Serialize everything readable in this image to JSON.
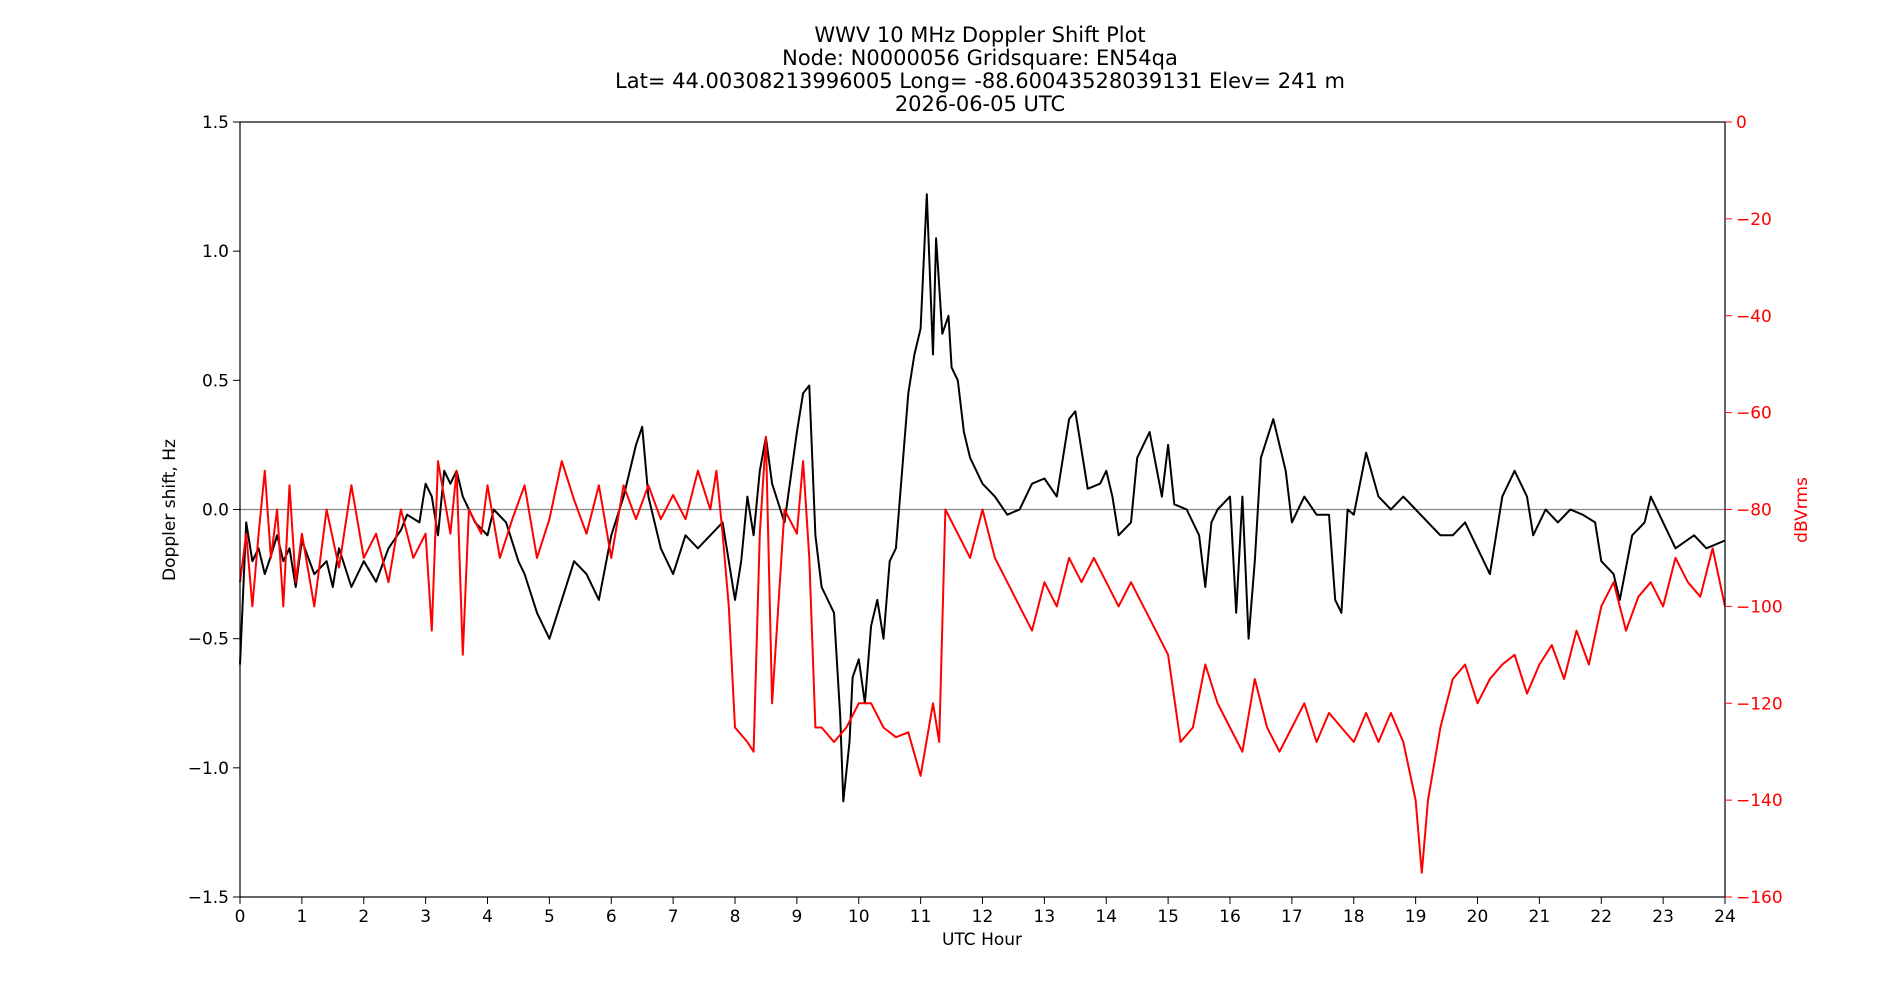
{
  "chart_data": {
    "type": "line",
    "title_lines": [
      "WWV 10 MHz Doppler Shift Plot",
      "Node:  N0000056     Gridsquare:  EN54qa",
      "Lat= 44.00308213996005    Long= -88.60043528039131    Elev= 241 m",
      "2026-06-05  UTC"
    ],
    "xlabel": "UTC Hour",
    "ylabel_left": "Doppler shift, Hz",
    "ylabel_right": "dBVrms",
    "xlim": [
      0,
      24
    ],
    "ylim_left": [
      -1.5,
      1.5
    ],
    "ylim_right": [
      -160,
      0
    ],
    "x_ticks": [
      0,
      1,
      2,
      3,
      4,
      5,
      6,
      7,
      8,
      9,
      10,
      11,
      12,
      13,
      14,
      15,
      16,
      17,
      18,
      19,
      20,
      21,
      22,
      23,
      24
    ],
    "y_left_ticks": [
      -1.5,
      -1.0,
      -0.5,
      0.0,
      0.5,
      1.0,
      1.5
    ],
    "y_left_tick_labels": [
      "−1.5",
      "−1.0",
      "−0.5",
      "0.0",
      "0.5",
      "1.0",
      "1.5"
    ],
    "y_right_ticks": [
      -160,
      -140,
      -120,
      -100,
      -80,
      -60,
      -40,
      -20,
      0
    ],
    "y_right_tick_labels": [
      "−160",
      "−140",
      "−120",
      "−100",
      "−80",
      "−60",
      "−40",
      "−20",
      "0"
    ],
    "zero_line": 0.0,
    "colors": {
      "doppler": "#000000",
      "power": "#ff0000",
      "zero_line": "#888888",
      "right_axis": "#ff0000"
    },
    "series": [
      {
        "axis": "left",
        "color": "#000000",
        "points": [
          [
            0,
            -0.6
          ],
          [
            0.1,
            -0.05
          ],
          [
            0.2,
            -0.2
          ],
          [
            0.3,
            -0.15
          ],
          [
            0.4,
            -0.25
          ],
          [
            0.5,
            -0.18
          ],
          [
            0.6,
            -0.1
          ],
          [
            0.7,
            -0.2
          ],
          [
            0.8,
            -0.15
          ],
          [
            0.9,
            -0.3
          ],
          [
            1.0,
            -0.12
          ],
          [
            1.2,
            -0.25
          ],
          [
            1.4,
            -0.2
          ],
          [
            1.5,
            -0.3
          ],
          [
            1.6,
            -0.15
          ],
          [
            1.8,
            -0.3
          ],
          [
            2.0,
            -0.2
          ],
          [
            2.2,
            -0.28
          ],
          [
            2.4,
            -0.15
          ],
          [
            2.6,
            -0.08
          ],
          [
            2.7,
            -0.02
          ],
          [
            2.9,
            -0.05
          ],
          [
            3.0,
            0.1
          ],
          [
            3.1,
            0.05
          ],
          [
            3.2,
            -0.1
          ],
          [
            3.3,
            0.15
          ],
          [
            3.4,
            0.1
          ],
          [
            3.5,
            0.15
          ],
          [
            3.6,
            0.05
          ],
          [
            3.8,
            -0.05
          ],
          [
            4.0,
            -0.1
          ],
          [
            4.1,
            0.0
          ],
          [
            4.3,
            -0.05
          ],
          [
            4.5,
            -0.2
          ],
          [
            4.6,
            -0.25
          ],
          [
            4.8,
            -0.4
          ],
          [
            5.0,
            -0.5
          ],
          [
            5.2,
            -0.35
          ],
          [
            5.4,
            -0.2
          ],
          [
            5.6,
            -0.25
          ],
          [
            5.8,
            -0.35
          ],
          [
            6.0,
            -0.1
          ],
          [
            6.2,
            0.05
          ],
          [
            6.4,
            0.25
          ],
          [
            6.5,
            0.32
          ],
          [
            6.6,
            0.05
          ],
          [
            6.8,
            -0.15
          ],
          [
            7.0,
            -0.25
          ],
          [
            7.2,
            -0.1
          ],
          [
            7.4,
            -0.15
          ],
          [
            7.6,
            -0.1
          ],
          [
            7.8,
            -0.05
          ],
          [
            7.9,
            -0.2
          ],
          [
            8.0,
            -0.35
          ],
          [
            8.1,
            -0.2
          ],
          [
            8.2,
            0.05
          ],
          [
            8.3,
            -0.1
          ],
          [
            8.4,
            0.15
          ],
          [
            8.5,
            0.28
          ],
          [
            8.6,
            0.1
          ],
          [
            8.8,
            -0.05
          ],
          [
            9.0,
            0.3
          ],
          [
            9.1,
            0.45
          ],
          [
            9.2,
            0.48
          ],
          [
            9.3,
            -0.1
          ],
          [
            9.4,
            -0.3
          ],
          [
            9.6,
            -0.4
          ],
          [
            9.7,
            -0.8
          ],
          [
            9.75,
            -1.13
          ],
          [
            9.85,
            -0.9
          ],
          [
            9.9,
            -0.65
          ],
          [
            10.0,
            -0.58
          ],
          [
            10.1,
            -0.75
          ],
          [
            10.2,
            -0.45
          ],
          [
            10.3,
            -0.35
          ],
          [
            10.4,
            -0.5
          ],
          [
            10.5,
            -0.2
          ],
          [
            10.6,
            -0.15
          ],
          [
            10.7,
            0.15
          ],
          [
            10.8,
            0.45
          ],
          [
            10.9,
            0.6
          ],
          [
            11.0,
            0.7
          ],
          [
            11.1,
            1.22
          ],
          [
            11.2,
            0.6
          ],
          [
            11.25,
            1.05
          ],
          [
            11.35,
            0.68
          ],
          [
            11.45,
            0.75
          ],
          [
            11.5,
            0.55
          ],
          [
            11.6,
            0.5
          ],
          [
            11.7,
            0.3
          ],
          [
            11.8,
            0.2
          ],
          [
            12.0,
            0.1
          ],
          [
            12.2,
            0.05
          ],
          [
            12.4,
            -0.02
          ],
          [
            12.6,
            0.0
          ],
          [
            12.8,
            0.1
          ],
          [
            13.0,
            0.12
          ],
          [
            13.2,
            0.05
          ],
          [
            13.4,
            0.35
          ],
          [
            13.5,
            0.38
          ],
          [
            13.7,
            0.08
          ],
          [
            13.9,
            0.1
          ],
          [
            14.0,
            0.15
          ],
          [
            14.1,
            0.05
          ],
          [
            14.2,
            -0.1
          ],
          [
            14.4,
            -0.05
          ],
          [
            14.5,
            0.2
          ],
          [
            14.7,
            0.3
          ],
          [
            14.9,
            0.05
          ],
          [
            15.0,
            0.25
          ],
          [
            15.1,
            0.02
          ],
          [
            15.3,
            0.0
          ],
          [
            15.5,
            -0.1
          ],
          [
            15.6,
            -0.3
          ],
          [
            15.7,
            -0.05
          ],
          [
            15.8,
            0.0
          ],
          [
            16.0,
            0.05
          ],
          [
            16.1,
            -0.4
          ],
          [
            16.2,
            0.05
          ],
          [
            16.3,
            -0.5
          ],
          [
            16.4,
            -0.2
          ],
          [
            16.5,
            0.2
          ],
          [
            16.7,
            0.35
          ],
          [
            16.9,
            0.15
          ],
          [
            17.0,
            -0.05
          ],
          [
            17.2,
            0.05
          ],
          [
            17.4,
            -0.02
          ],
          [
            17.6,
            -0.02
          ],
          [
            17.7,
            -0.35
          ],
          [
            17.8,
            -0.4
          ],
          [
            17.9,
            0.0
          ],
          [
            18.0,
            -0.02
          ],
          [
            18.2,
            0.22
          ],
          [
            18.4,
            0.05
          ],
          [
            18.6,
            0.0
          ],
          [
            18.8,
            0.05
          ],
          [
            19.0,
            0.0
          ],
          [
            19.2,
            -0.05
          ],
          [
            19.4,
            -0.1
          ],
          [
            19.6,
            -0.1
          ],
          [
            19.8,
            -0.05
          ],
          [
            20.0,
            -0.15
          ],
          [
            20.2,
            -0.25
          ],
          [
            20.4,
            0.05
          ],
          [
            20.6,
            0.15
          ],
          [
            20.8,
            0.05
          ],
          [
            20.9,
            -0.1
          ],
          [
            21.1,
            0.0
          ],
          [
            21.3,
            -0.05
          ],
          [
            21.5,
            0.0
          ],
          [
            21.7,
            -0.02
          ],
          [
            21.9,
            -0.05
          ],
          [
            22.0,
            -0.2
          ],
          [
            22.2,
            -0.25
          ],
          [
            22.3,
            -0.35
          ],
          [
            22.5,
            -0.1
          ],
          [
            22.7,
            -0.05
          ],
          [
            22.8,
            0.05
          ],
          [
            23.0,
            -0.05
          ],
          [
            23.2,
            -0.15
          ],
          [
            23.5,
            -0.1
          ],
          [
            23.7,
            -0.15
          ],
          [
            24.0,
            -0.12
          ]
        ]
      },
      {
        "axis": "right",
        "color": "#ff0000",
        "points": [
          [
            0,
            -95
          ],
          [
            0.1,
            -85
          ],
          [
            0.2,
            -100
          ],
          [
            0.3,
            -85
          ],
          [
            0.4,
            -72
          ],
          [
            0.5,
            -90
          ],
          [
            0.6,
            -80
          ],
          [
            0.7,
            -100
          ],
          [
            0.8,
            -75
          ],
          [
            0.9,
            -95
          ],
          [
            1.0,
            -85
          ],
          [
            1.2,
            -100
          ],
          [
            1.4,
            -80
          ],
          [
            1.6,
            -92
          ],
          [
            1.8,
            -75
          ],
          [
            2.0,
            -90
          ],
          [
            2.2,
            -85
          ],
          [
            2.4,
            -95
          ],
          [
            2.6,
            -80
          ],
          [
            2.8,
            -90
          ],
          [
            3.0,
            -85
          ],
          [
            3.1,
            -105
          ],
          [
            3.2,
            -70
          ],
          [
            3.4,
            -85
          ],
          [
            3.5,
            -72
          ],
          [
            3.6,
            -110
          ],
          [
            3.7,
            -80
          ],
          [
            3.9,
            -85
          ],
          [
            4.0,
            -75
          ],
          [
            4.2,
            -90
          ],
          [
            4.4,
            -82
          ],
          [
            4.6,
            -75
          ],
          [
            4.8,
            -90
          ],
          [
            5.0,
            -82
          ],
          [
            5.2,
            -70
          ],
          [
            5.4,
            -78
          ],
          [
            5.6,
            -85
          ],
          [
            5.8,
            -75
          ],
          [
            6.0,
            -90
          ],
          [
            6.2,
            -75
          ],
          [
            6.4,
            -82
          ],
          [
            6.6,
            -75
          ],
          [
            6.8,
            -82
          ],
          [
            7.0,
            -77
          ],
          [
            7.2,
            -82
          ],
          [
            7.4,
            -72
          ],
          [
            7.6,
            -80
          ],
          [
            7.7,
            -72
          ],
          [
            7.8,
            -85
          ],
          [
            7.9,
            -100
          ],
          [
            8.0,
            -125
          ],
          [
            8.2,
            -128
          ],
          [
            8.3,
            -130
          ],
          [
            8.4,
            -85
          ],
          [
            8.5,
            -65
          ],
          [
            8.6,
            -120
          ],
          [
            8.7,
            -100
          ],
          [
            8.8,
            -80
          ],
          [
            9.0,
            -85
          ],
          [
            9.1,
            -70
          ],
          [
            9.2,
            -90
          ],
          [
            9.3,
            -125
          ],
          [
            9.4,
            -125
          ],
          [
            9.6,
            -128
          ],
          [
            9.8,
            -125
          ],
          [
            10.0,
            -120
          ],
          [
            10.2,
            -120
          ],
          [
            10.4,
            -125
          ],
          [
            10.6,
            -127
          ],
          [
            10.8,
            -126
          ],
          [
            11.0,
            -135
          ],
          [
            11.2,
            -120
          ],
          [
            11.3,
            -128
          ],
          [
            11.4,
            -80
          ],
          [
            11.6,
            -85
          ],
          [
            11.8,
            -90
          ],
          [
            12.0,
            -80
          ],
          [
            12.2,
            -90
          ],
          [
            12.4,
            -95
          ],
          [
            12.6,
            -100
          ],
          [
            12.8,
            -105
          ],
          [
            13.0,
            -95
          ],
          [
            13.2,
            -100
          ],
          [
            13.4,
            -90
          ],
          [
            13.6,
            -95
          ],
          [
            13.8,
            -90
          ],
          [
            14.0,
            -95
          ],
          [
            14.2,
            -100
          ],
          [
            14.4,
            -95
          ],
          [
            14.6,
            -100
          ],
          [
            14.8,
            -105
          ],
          [
            15.0,
            -110
          ],
          [
            15.2,
            -128
          ],
          [
            15.4,
            -125
          ],
          [
            15.6,
            -112
          ],
          [
            15.8,
            -120
          ],
          [
            16.0,
            -125
          ],
          [
            16.2,
            -130
          ],
          [
            16.4,
            -115
          ],
          [
            16.6,
            -125
          ],
          [
            16.8,
            -130
          ],
          [
            17.0,
            -125
          ],
          [
            17.2,
            -120
          ],
          [
            17.4,
            -128
          ],
          [
            17.6,
            -122
          ],
          [
            17.8,
            -125
          ],
          [
            18.0,
            -128
          ],
          [
            18.2,
            -122
          ],
          [
            18.4,
            -128
          ],
          [
            18.6,
            -122
          ],
          [
            18.8,
            -128
          ],
          [
            19.0,
            -140
          ],
          [
            19.1,
            -155
          ],
          [
            19.2,
            -140
          ],
          [
            19.4,
            -125
          ],
          [
            19.6,
            -115
          ],
          [
            19.8,
            -112
          ],
          [
            20.0,
            -120
          ],
          [
            20.2,
            -115
          ],
          [
            20.4,
            -112
          ],
          [
            20.6,
            -110
          ],
          [
            20.8,
            -118
          ],
          [
            21.0,
            -112
          ],
          [
            21.2,
            -108
          ],
          [
            21.4,
            -115
          ],
          [
            21.6,
            -105
          ],
          [
            21.8,
            -112
          ],
          [
            22.0,
            -100
          ],
          [
            22.2,
            -95
          ],
          [
            22.4,
            -105
          ],
          [
            22.6,
            -98
          ],
          [
            22.8,
            -95
          ],
          [
            23.0,
            -100
          ],
          [
            23.2,
            -90
          ],
          [
            23.4,
            -95
          ],
          [
            23.6,
            -98
          ],
          [
            23.8,
            -88
          ],
          [
            24.0,
            -100
          ]
        ]
      }
    ]
  }
}
